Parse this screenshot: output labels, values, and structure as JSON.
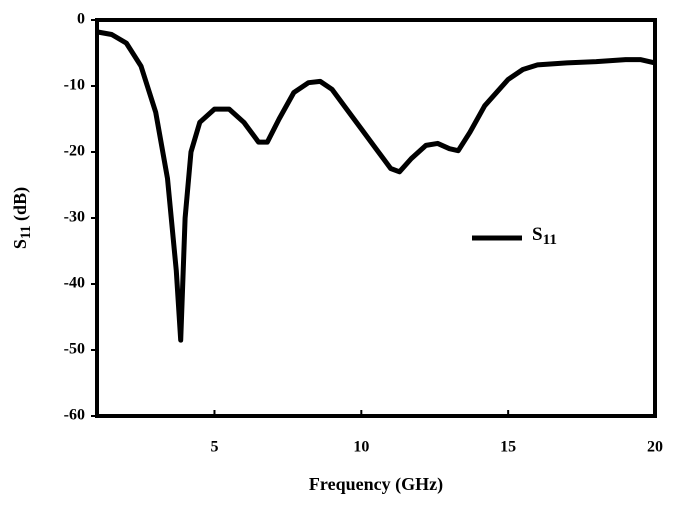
{
  "chart_data": {
    "type": "line",
    "x_label": "Frequency  (GHz)",
    "y_label": "S11  (dB)",
    "x": [
      1,
      1.5,
      2,
      2.5,
      3,
      3.4,
      3.7,
      3.85,
      4.0,
      4.2,
      4.5,
      5,
      5.5,
      6,
      6.5,
      6.8,
      7.2,
      7.7,
      8.2,
      8.6,
      9,
      9.5,
      10,
      10.5,
      11,
      11.3,
      11.7,
      12.2,
      12.6,
      13,
      13.3,
      13.7,
      14.2,
      15,
      15.5,
      16,
      17,
      18,
      19,
      19.5,
      20
    ],
    "series": [
      {
        "name": "S11",
        "color": "#000000",
        "values": [
          -1.8,
          -2.2,
          -3.5,
          -7,
          -14,
          -24,
          -38,
          -48.5,
          -30,
          -20,
          -15.5,
          -13.5,
          -13.5,
          -15.5,
          -18.5,
          -18.5,
          -15,
          -11,
          -9.5,
          -9.3,
          -10.5,
          -13.5,
          -16.5,
          -19.5,
          -22.5,
          -23,
          -21,
          -19,
          -18.7,
          -19.5,
          -19.8,
          -17,
          -13,
          -9,
          -7.5,
          -6.8,
          -6.5,
          -6.3,
          -6.0,
          -6.0,
          -6.5
        ]
      }
    ],
    "xlim": [
      1,
      20
    ],
    "xticks": [
      5,
      10,
      15,
      20
    ],
    "ylim": [
      -60,
      0
    ],
    "yticks": [
      0,
      -10,
      -20,
      -30,
      -40,
      -50,
      -60
    ],
    "legend": "right"
  }
}
